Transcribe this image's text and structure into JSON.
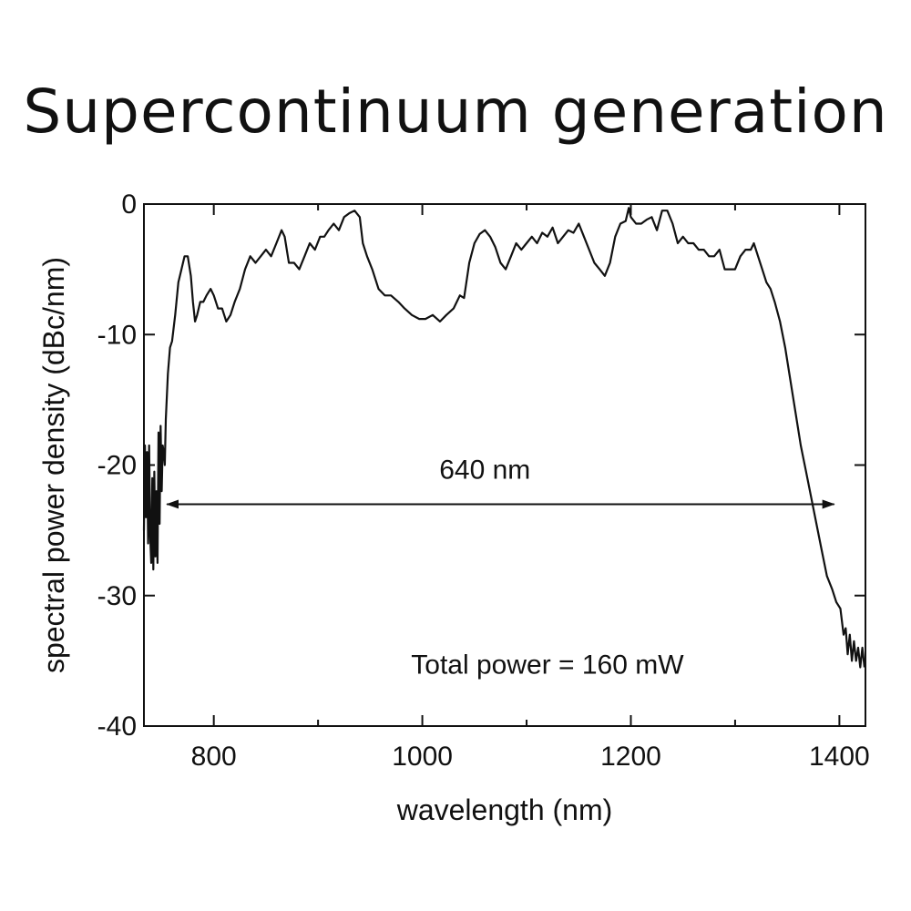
{
  "chart_data": {
    "type": "line",
    "title": "Supercontinuum generation",
    "xlabel": "wavelength (nm)",
    "ylabel": "spectral power density (dBc/nm)",
    "xlim": [
      733,
      1425
    ],
    "ylim": [
      -40,
      0
    ],
    "x_ticks": [
      800,
      1000,
      1200,
      1400
    ],
    "x_minor_ticks": [
      900,
      1100,
      1300
    ],
    "y_ticks": [
      0,
      -10,
      -20,
      -30,
      -40
    ],
    "grid": false,
    "series": [
      {
        "points": [
          [
            733,
            -25
          ],
          [
            734,
            -18.5
          ],
          [
            735,
            -24
          ],
          [
            736,
            -19
          ],
          [
            737,
            -26
          ],
          [
            738,
            -18.5
          ],
          [
            739,
            -25.5
          ],
          [
            740,
            -27.5
          ],
          [
            741,
            -21
          ],
          [
            742,
            -28
          ],
          [
            743,
            -20.5
          ],
          [
            744,
            -27
          ],
          [
            745,
            -22
          ],
          [
            746,
            -27.5
          ],
          [
            747,
            -17.5
          ],
          [
            748,
            -24.5
          ],
          [
            749,
            -17
          ],
          [
            750,
            -22
          ],
          [
            751,
            -18.5
          ],
          [
            752,
            -19
          ],
          [
            753,
            -20
          ],
          [
            754,
            -16.5
          ],
          [
            756,
            -13
          ],
          [
            758,
            -11
          ],
          [
            760,
            -10.5
          ],
          [
            763,
            -8.5
          ],
          [
            766,
            -6
          ],
          [
            769,
            -5
          ],
          [
            772,
            -4
          ],
          [
            775,
            -4
          ],
          [
            778,
            -5.5
          ],
          [
            780,
            -7.5
          ],
          [
            782,
            -9
          ],
          [
            784,
            -8.5
          ],
          [
            787,
            -7.5
          ],
          [
            790,
            -7.5
          ],
          [
            793,
            -7
          ],
          [
            797,
            -6.5
          ],
          [
            800,
            -7
          ],
          [
            804,
            -8
          ],
          [
            808,
            -8
          ],
          [
            812,
            -9
          ],
          [
            816,
            -8.5
          ],
          [
            820,
            -7.5
          ],
          [
            825,
            -6.5
          ],
          [
            830,
            -5
          ],
          [
            835,
            -4
          ],
          [
            840,
            -4.5
          ],
          [
            845,
            -4
          ],
          [
            850,
            -3.5
          ],
          [
            855,
            -4
          ],
          [
            860,
            -3
          ],
          [
            865,
            -2
          ],
          [
            868,
            -2.5
          ],
          [
            872,
            -4.5
          ],
          [
            877,
            -4.5
          ],
          [
            882,
            -5
          ],
          [
            887,
            -4
          ],
          [
            892,
            -3
          ],
          [
            897,
            -3.5
          ],
          [
            902,
            -2.5
          ],
          [
            906,
            -2.5
          ],
          [
            910,
            -2
          ],
          [
            915,
            -1.5
          ],
          [
            920,
            -2
          ],
          [
            925,
            -1
          ],
          [
            930,
            -0.7
          ],
          [
            935,
            -0.5
          ],
          [
            940,
            -1
          ],
          [
            943,
            -3
          ],
          [
            947,
            -4
          ],
          [
            952,
            -5
          ],
          [
            958,
            -6.5
          ],
          [
            964,
            -7
          ],
          [
            970,
            -7
          ],
          [
            977,
            -7.5
          ],
          [
            983,
            -8
          ],
          [
            990,
            -8.5
          ],
          [
            997,
            -8.8
          ],
          [
            1003,
            -8.8
          ],
          [
            1010,
            -8.5
          ],
          [
            1017,
            -9
          ],
          [
            1023,
            -8.5
          ],
          [
            1030,
            -8
          ],
          [
            1036,
            -7
          ],
          [
            1040,
            -7.2
          ],
          [
            1045,
            -4.5
          ],
          [
            1050,
            -3
          ],
          [
            1055,
            -2.3
          ],
          [
            1060,
            -2
          ],
          [
            1065,
            -2.5
          ],
          [
            1070,
            -3.3
          ],
          [
            1075,
            -4.5
          ],
          [
            1080,
            -5
          ],
          [
            1085,
            -4
          ],
          [
            1090,
            -3
          ],
          [
            1095,
            -3.5
          ],
          [
            1100,
            -3
          ],
          [
            1105,
            -2.5
          ],
          [
            1110,
            -3
          ],
          [
            1115,
            -2.2
          ],
          [
            1120,
            -2.5
          ],
          [
            1125,
            -1.8
          ],
          [
            1130,
            -3
          ],
          [
            1135,
            -2.5
          ],
          [
            1140,
            -2
          ],
          [
            1145,
            -2.2
          ],
          [
            1150,
            -1.5
          ],
          [
            1155,
            -2.5
          ],
          [
            1160,
            -3.5
          ],
          [
            1165,
            -4.5
          ],
          [
            1170,
            -5
          ],
          [
            1175,
            -5.5
          ],
          [
            1180,
            -4.5
          ],
          [
            1185,
            -2.5
          ],
          [
            1190,
            -1.5
          ],
          [
            1195,
            -1.3
          ],
          [
            1198,
            -0.3
          ],
          [
            1200,
            -1
          ],
          [
            1205,
            -1.5
          ],
          [
            1210,
            -1.5
          ],
          [
            1215,
            -1.2
          ],
          [
            1220,
            -1
          ],
          [
            1225,
            -2
          ],
          [
            1230,
            -0.5
          ],
          [
            1235,
            -0.5
          ],
          [
            1240,
            -1.5
          ],
          [
            1245,
            -3
          ],
          [
            1250,
            -2.5
          ],
          [
            1255,
            -3
          ],
          [
            1260,
            -3
          ],
          [
            1265,
            -3.5
          ],
          [
            1270,
            -3.5
          ],
          [
            1275,
            -4
          ],
          [
            1280,
            -4
          ],
          [
            1285,
            -3.5
          ],
          [
            1290,
            -5
          ],
          [
            1295,
            -5
          ],
          [
            1300,
            -5
          ],
          [
            1305,
            -4
          ],
          [
            1310,
            -3.5
          ],
          [
            1315,
            -3.5
          ],
          [
            1318,
            -3
          ],
          [
            1322,
            -4
          ],
          [
            1326,
            -5
          ],
          [
            1330,
            -6
          ],
          [
            1334,
            -6.5
          ],
          [
            1338,
            -7.5
          ],
          [
            1343,
            -9
          ],
          [
            1348,
            -11
          ],
          [
            1353,
            -13.5
          ],
          [
            1358,
            -16
          ],
          [
            1363,
            -18.5
          ],
          [
            1368,
            -20.5
          ],
          [
            1373,
            -22.5
          ],
          [
            1378,
            -24.5
          ],
          [
            1383,
            -26.5
          ],
          [
            1388,
            -28.5
          ],
          [
            1393,
            -29.5
          ],
          [
            1397,
            -30.5
          ],
          [
            1401,
            -31
          ],
          [
            1404,
            -33
          ],
          [
            1406,
            -32.5
          ],
          [
            1408,
            -34.5
          ],
          [
            1410,
            -33
          ],
          [
            1412,
            -35
          ],
          [
            1414,
            -33.5
          ],
          [
            1416,
            -35
          ],
          [
            1418,
            -34
          ],
          [
            1420,
            -35.5
          ],
          [
            1422,
            -34
          ],
          [
            1424,
            -35.5
          ]
        ]
      }
    ],
    "annotations": [
      {
        "text": "640 nm",
        "x": 1060,
        "y": -20.5
      },
      {
        "text": "Total power = 160 mW",
        "x": 1120,
        "y": -35.3
      }
    ],
    "arrow": {
      "x_start": 755,
      "x_end": 1395,
      "y": -23
    }
  }
}
